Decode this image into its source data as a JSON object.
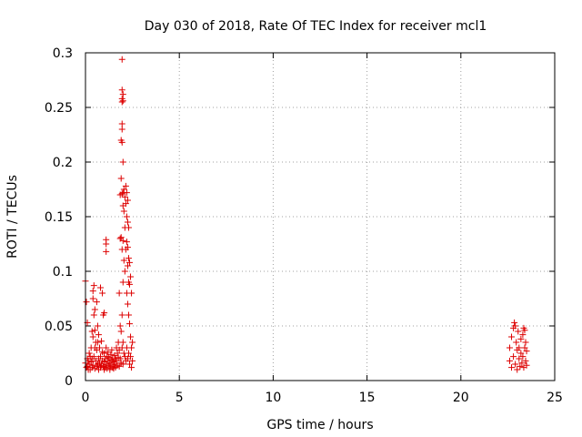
{
  "chart_data": {
    "type": "scatter",
    "title": "Day 030 of 2018, Rate Of TEC Index for receiver mcl1",
    "xlabel": "GPS time / hours",
    "ylabel": "ROTI / TECUs",
    "xlim": [
      0,
      25
    ],
    "ylim": [
      0,
      0.3
    ],
    "x_ticks": [
      0,
      5,
      10,
      15,
      20,
      25
    ],
    "x_tick_labels": [
      "0",
      "5",
      "10",
      "15",
      "20",
      "25"
    ],
    "y_ticks": [
      0,
      0.05,
      0.1,
      0.15,
      0.2,
      0.25,
      0.3
    ],
    "y_tick_labels": [
      "0",
      "0.05",
      "0.1",
      "0.15",
      "0.2",
      "0.25",
      "0.3"
    ],
    "grid": true,
    "legend": "none",
    "marker": "plus",
    "color": "#dd0000",
    "points": [
      [
        0.0,
        0.091
      ],
      [
        0.0,
        0.016
      ],
      [
        0.05,
        0.012
      ],
      [
        0.05,
        0.072
      ],
      [
        0.1,
        0.053
      ],
      [
        0.1,
        0.02
      ],
      [
        0.1,
        0.013
      ],
      [
        0.15,
        0.018
      ],
      [
        0.15,
        0.01
      ],
      [
        0.2,
        0.015
      ],
      [
        0.2,
        0.025
      ],
      [
        0.25,
        0.01
      ],
      [
        0.25,
        0.022
      ],
      [
        0.3,
        0.017
      ],
      [
        0.3,
        0.03
      ],
      [
        0.35,
        0.045
      ],
      [
        0.35,
        0.02
      ],
      [
        0.35,
        0.012
      ],
      [
        0.4,
        0.082
      ],
      [
        0.4,
        0.075
      ],
      [
        0.4,
        0.04
      ],
      [
        0.4,
        0.014
      ],
      [
        0.45,
        0.087
      ],
      [
        0.45,
        0.06
      ],
      [
        0.45,
        0.022
      ],
      [
        0.5,
        0.065
      ],
      [
        0.5,
        0.046
      ],
      [
        0.5,
        0.03
      ],
      [
        0.5,
        0.011
      ],
      [
        0.55,
        0.035
      ],
      [
        0.55,
        0.018
      ],
      [
        0.6,
        0.072
      ],
      [
        0.6,
        0.028
      ],
      [
        0.6,
        0.013
      ],
      [
        0.65,
        0.035
      ],
      [
        0.65,
        0.015
      ],
      [
        0.7,
        0.042
      ],
      [
        0.7,
        0.02
      ],
      [
        0.7,
        0.01
      ],
      [
        0.75,
        0.03
      ],
      [
        0.75,
        0.016
      ],
      [
        0.8,
        0.085
      ],
      [
        0.8,
        0.022
      ],
      [
        0.8,
        0.012
      ],
      [
        0.85,
        0.036
      ],
      [
        0.85,
        0.014
      ],
      [
        0.9,
        0.08
      ],
      [
        0.9,
        0.018
      ],
      [
        0.9,
        0.026
      ],
      [
        0.95,
        0.06
      ],
      [
        0.95,
        0.013
      ],
      [
        1.0,
        0.025
      ],
      [
        1.0,
        0.017
      ],
      [
        1.0,
        0.01
      ],
      [
        1.05,
        0.02
      ],
      [
        1.05,
        0.012
      ],
      [
        1.1,
        0.03
      ],
      [
        1.1,
        0.015
      ],
      [
        1.15,
        0.022
      ],
      [
        1.15,
        0.011
      ],
      [
        1.2,
        0.018
      ],
      [
        1.2,
        0.026
      ],
      [
        1.25,
        0.014
      ],
      [
        1.25,
        0.021
      ],
      [
        1.3,
        0.016
      ],
      [
        1.3,
        0.01
      ],
      [
        1.35,
        0.024
      ],
      [
        1.35,
        0.013
      ],
      [
        1.4,
        0.019
      ],
      [
        1.4,
        0.028
      ],
      [
        1.45,
        0.012
      ],
      [
        1.45,
        0.02
      ],
      [
        1.5,
        0.017
      ],
      [
        1.5,
        0.011
      ],
      [
        1.55,
        0.023
      ],
      [
        1.55,
        0.015
      ],
      [
        1.6,
        0.02
      ],
      [
        1.6,
        0.012
      ],
      [
        1.65,
        0.03
      ],
      [
        1.65,
        0.018
      ],
      [
        1.7,
        0.025
      ],
      [
        1.7,
        0.014
      ],
      [
        1.75,
        0.035
      ],
      [
        1.75,
        0.021
      ],
      [
        1.8,
        0.028
      ],
      [
        1.8,
        0.013
      ],
      [
        1.8,
        0.08
      ],
      [
        1.85,
        0.13
      ],
      [
        1.85,
        0.17
      ],
      [
        1.85,
        0.05
      ],
      [
        1.85,
        0.02
      ],
      [
        1.9,
        0.22
      ],
      [
        1.9,
        0.185
      ],
      [
        1.9,
        0.131
      ],
      [
        1.9,
        0.045
      ],
      [
        1.9,
        0.016
      ],
      [
        1.95,
        0.294
      ],
      [
        1.95,
        0.266
      ],
      [
        1.95,
        0.258
      ],
      [
        1.95,
        0.255
      ],
      [
        1.95,
        0.235
      ],
      [
        1.95,
        0.23
      ],
      [
        1.95,
        0.218
      ],
      [
        1.95,
        0.171
      ],
      [
        1.95,
        0.12
      ],
      [
        1.95,
        0.06
      ],
      [
        1.95,
        0.03
      ],
      [
        2.0,
        0.262
      ],
      [
        2.0,
        0.256
      ],
      [
        2.0,
        0.2
      ],
      [
        2.0,
        0.172
      ],
      [
        2.0,
        0.16
      ],
      [
        2.0,
        0.128
      ],
      [
        2.0,
        0.09
      ],
      [
        2.0,
        0.035
      ],
      [
        2.0,
        0.015
      ],
      [
        2.05,
        0.175
      ],
      [
        2.05,
        0.155
      ],
      [
        2.05,
        0.11
      ],
      [
        2.05,
        0.025
      ],
      [
        2.1,
        0.168
      ],
      [
        2.1,
        0.14
      ],
      [
        2.1,
        0.1
      ],
      [
        2.1,
        0.022
      ],
      [
        2.15,
        0.178
      ],
      [
        2.15,
        0.162
      ],
      [
        2.15,
        0.12
      ],
      [
        2.15,
        0.018
      ],
      [
        2.2,
        0.172
      ],
      [
        2.2,
        0.15
      ],
      [
        2.2,
        0.127
      ],
      [
        2.2,
        0.08
      ],
      [
        2.2,
        0.03
      ],
      [
        2.25,
        0.165
      ],
      [
        2.25,
        0.145
      ],
      [
        2.25,
        0.122
      ],
      [
        2.25,
        0.105
      ],
      [
        2.25,
        0.07
      ],
      [
        2.25,
        0.02
      ],
      [
        2.3,
        0.14
      ],
      [
        2.3,
        0.112
      ],
      [
        2.3,
        0.09
      ],
      [
        2.3,
        0.06
      ],
      [
        2.3,
        0.025
      ],
      [
        2.35,
        0.108
      ],
      [
        2.35,
        0.088
      ],
      [
        2.35,
        0.052
      ],
      [
        2.35,
        0.015
      ],
      [
        2.4,
        0.095
      ],
      [
        2.4,
        0.04
      ],
      [
        2.4,
        0.022
      ],
      [
        2.45,
        0.08
      ],
      [
        2.45,
        0.03
      ],
      [
        2.45,
        0.012
      ],
      [
        2.5,
        0.035
      ],
      [
        2.5,
        0.018
      ],
      [
        1.1,
        0.129
      ],
      [
        1.1,
        0.125
      ],
      [
        1.1,
        0.118
      ],
      [
        1.0,
        0.062
      ],
      [
        0.65,
        0.05
      ],
      [
        22.6,
        0.03
      ],
      [
        22.6,
        0.018
      ],
      [
        22.7,
        0.04
      ],
      [
        22.7,
        0.012
      ],
      [
        22.8,
        0.048
      ],
      [
        22.8,
        0.022
      ],
      [
        22.85,
        0.053
      ],
      [
        22.9,
        0.05
      ],
      [
        22.9,
        0.015
      ],
      [
        22.95,
        0.035
      ],
      [
        23.0,
        0.028
      ],
      [
        23.0,
        0.01
      ],
      [
        23.05,
        0.045
      ],
      [
        23.1,
        0.02
      ],
      [
        23.1,
        0.03
      ],
      [
        23.15,
        0.013
      ],
      [
        23.2,
        0.038
      ],
      [
        23.2,
        0.025
      ],
      [
        23.25,
        0.016
      ],
      [
        23.3,
        0.042
      ],
      [
        23.3,
        0.022
      ],
      [
        23.35,
        0.048
      ],
      [
        23.35,
        0.012
      ],
      [
        23.4,
        0.046
      ],
      [
        23.4,
        0.03
      ],
      [
        23.45,
        0.035
      ],
      [
        23.45,
        0.018
      ],
      [
        23.5,
        0.027
      ],
      [
        23.5,
        0.014
      ]
    ]
  }
}
